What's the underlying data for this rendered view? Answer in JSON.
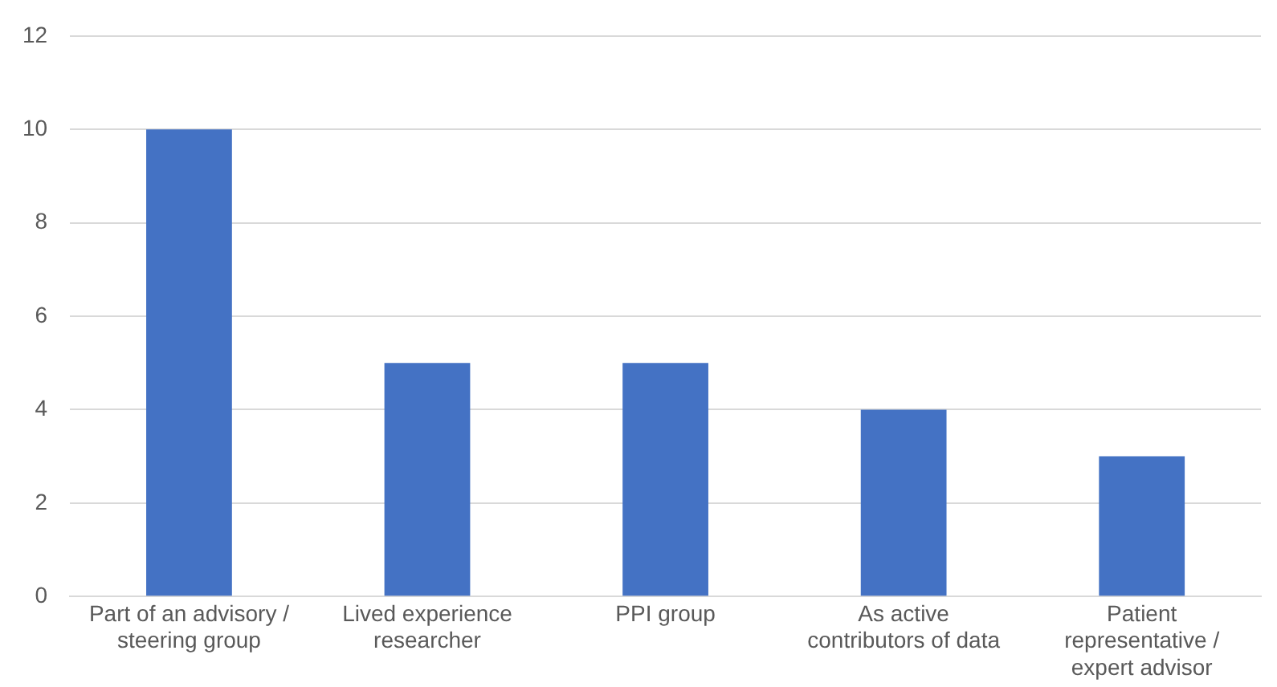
{
  "chart_data": {
    "type": "bar",
    "categories": [
      "Part of an advisory / steering group",
      "Lived experience researcher",
      "PPI group",
      "As active contributors of data",
      "Patient representative / expert advisor"
    ],
    "values": [
      10,
      5,
      5,
      4,
      3
    ],
    "color": "#4472c4",
    "ylim": [
      0,
      12
    ],
    "yticks": [
      0,
      2,
      4,
      6,
      8,
      10,
      12
    ],
    "grid": "y",
    "legend": false
  }
}
